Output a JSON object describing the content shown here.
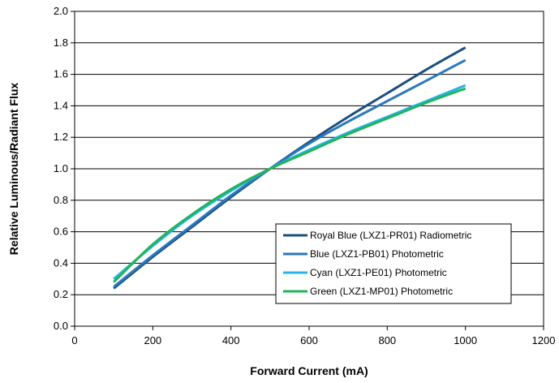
{
  "chart_data": {
    "type": "line",
    "title": "",
    "xlabel": "Forward Current (mA)",
    "ylabel": "Relative Luminous/Radiant Flux",
    "xlim": [
      0,
      1200
    ],
    "ylim": [
      0.0,
      2.0
    ],
    "x_ticks": [
      "0",
      "200",
      "400",
      "600",
      "800",
      "1000",
      "1200"
    ],
    "y_ticks": [
      "0.0",
      "0.2",
      "0.4",
      "0.6",
      "0.8",
      "1.0",
      "1.2",
      "1.4",
      "1.6",
      "1.8",
      "2.0"
    ],
    "grid": "horizontal",
    "legend_position": "bottom-right",
    "x": [
      100,
      200,
      300,
      400,
      500,
      600,
      700,
      800,
      900,
      1000
    ],
    "series": [
      {
        "name": "Royal Blue (LXZ1-PR01) Radiometric",
        "color": "#1b4f7f",
        "values": [
          0.24,
          0.44,
          0.63,
          0.82,
          1.0,
          1.17,
          1.33,
          1.48,
          1.63,
          1.77
        ]
      },
      {
        "name": "Blue (LXZ1-PB01) Photometric",
        "color": "#2a78bd",
        "values": [
          0.25,
          0.45,
          0.64,
          0.83,
          1.0,
          1.16,
          1.3,
          1.43,
          1.56,
          1.69
        ]
      },
      {
        "name": "Cyan (LXZ1-PE01) Photometric",
        "color": "#25b5e6",
        "values": [
          0.3,
          0.51,
          0.7,
          0.86,
          1.0,
          1.12,
          1.23,
          1.33,
          1.43,
          1.53
        ]
      },
      {
        "name": "Green (LXZ1-MP01) Photometric",
        "color": "#22b35a",
        "values": [
          0.28,
          0.52,
          0.71,
          0.87,
          1.0,
          1.11,
          1.22,
          1.32,
          1.42,
          1.51
        ]
      }
    ]
  }
}
